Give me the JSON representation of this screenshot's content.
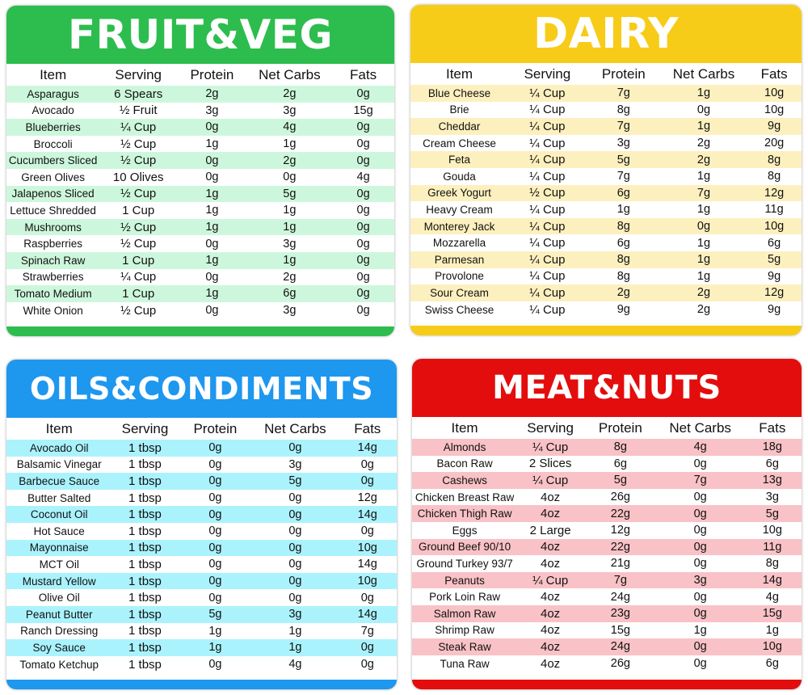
{
  "columns": [
    "Item",
    "Serving",
    "Protein",
    "Net Carbs",
    "Fats"
  ],
  "cards": {
    "fruit": {
      "title": "FRUIT&VEG",
      "accent": "#2dbd4e",
      "stripe": "#cdf7dc",
      "rows": [
        [
          "Asparagus",
          "6 Spears",
          "2g",
          "2g",
          "0g"
        ],
        [
          "Avocado",
          "½ Fruit",
          "3g",
          "3g",
          "15g"
        ],
        [
          "Blueberries",
          "¼ Cup",
          "0g",
          "4g",
          "0g"
        ],
        [
          "Broccoli",
          "½ Cup",
          "1g",
          "1g",
          "0g"
        ],
        [
          "Cucumbers Sliced",
          "½ Cup",
          "0g",
          "2g",
          "0g"
        ],
        [
          "Green Olives",
          "10 Olives",
          "0g",
          "0g",
          "4g"
        ],
        [
          "Jalapenos Sliced",
          "½ Cup",
          "1g",
          "5g",
          "0g"
        ],
        [
          "Lettuce Shredded",
          "1 Cup",
          "1g",
          "1g",
          "0g"
        ],
        [
          "Mushrooms",
          "½ Cup",
          "1g",
          "1g",
          "0g"
        ],
        [
          "Raspberries",
          "½ Cup",
          "0g",
          "3g",
          "0g"
        ],
        [
          "Spinach Raw",
          "1 Cup",
          "1g",
          "1g",
          "0g"
        ],
        [
          "Strawberries",
          "¼ Cup",
          "0g",
          "2g",
          "0g"
        ],
        [
          "Tomato Medium",
          "1 Cup",
          "1g",
          "6g",
          "0g"
        ],
        [
          "White Onion",
          "½ Cup",
          "0g",
          "3g",
          "0g"
        ]
      ]
    },
    "dairy": {
      "title": "DAIRY",
      "accent": "#f7cc18",
      "stripe": "#fdf0bf",
      "rows": [
        [
          "Blue Cheese",
          "¼ Cup",
          "7g",
          "1g",
          "10g"
        ],
        [
          "Brie",
          "¼ Cup",
          "8g",
          "0g",
          "10g"
        ],
        [
          "Cheddar",
          "¼ Cup",
          "7g",
          "1g",
          "9g"
        ],
        [
          "Cream Cheese",
          "¼ Cup",
          "3g",
          "2g",
          "20g"
        ],
        [
          "Feta",
          "¼ Cup",
          "5g",
          "2g",
          "8g"
        ],
        [
          "Gouda",
          "¼ Cup",
          "7g",
          "1g",
          "8g"
        ],
        [
          "Greek Yogurt",
          "½ Cup",
          "6g",
          "7g",
          "12g"
        ],
        [
          "Heavy Cream",
          "¼ Cup",
          "1g",
          "1g",
          "11g"
        ],
        [
          "Monterey Jack",
          "¼ Cup",
          "8g",
          "0g",
          "10g"
        ],
        [
          "Mozzarella",
          "¼ Cup",
          "6g",
          "1g",
          "6g"
        ],
        [
          "Parmesan",
          "¼ Cup",
          "8g",
          "1g",
          "5g"
        ],
        [
          "Provolone",
          "¼ Cup",
          "8g",
          "1g",
          "9g"
        ],
        [
          "Sour Cream",
          "¼ Cup",
          "2g",
          "2g",
          "12g"
        ],
        [
          "Swiss Cheese",
          "¼ Cup",
          "9g",
          "2g",
          "9g"
        ]
      ]
    },
    "oils": {
      "title": "OILS&CONDIMENTS",
      "accent": "#1e97ef",
      "stripe": "#aaf3fd",
      "rows": [
        [
          "Avocado Oil",
          "1 tbsp",
          "0g",
          "0g",
          "14g"
        ],
        [
          "Balsamic Vinegar",
          "1 tbsp",
          "0g",
          "3g",
          "0g"
        ],
        [
          "Barbecue Sauce",
          "1 tbsp",
          "0g",
          "5g",
          "0g"
        ],
        [
          "Butter Salted",
          "1 tbsp",
          "0g",
          "0g",
          "12g"
        ],
        [
          "Coconut Oil",
          "1 tbsp",
          "0g",
          "0g",
          "14g"
        ],
        [
          "Hot Sauce",
          "1 tbsp",
          "0g",
          "0g",
          "0g"
        ],
        [
          "Mayonnaise",
          "1 tbsp",
          "0g",
          "0g",
          "10g"
        ],
        [
          "MCT Oil",
          "1 tbsp",
          "0g",
          "0g",
          "14g"
        ],
        [
          "Mustard Yellow",
          "1 tbsp",
          "0g",
          "0g",
          "10g"
        ],
        [
          "Olive Oil",
          "1 tbsp",
          "0g",
          "0g",
          "0g"
        ],
        [
          "Peanut Butter",
          "1 tbsp",
          "5g",
          "3g",
          "14g"
        ],
        [
          "Ranch Dressing",
          "1 tbsp",
          "1g",
          "1g",
          "7g"
        ],
        [
          "Soy Sauce",
          "1 tbsp",
          "1g",
          "1g",
          "0g"
        ],
        [
          "Tomato Ketchup",
          "1 tbsp",
          "0g",
          "4g",
          "0g"
        ]
      ]
    },
    "meat": {
      "title": "MEAT&NUTS",
      "accent": "#e30d0d",
      "stripe": "#f9c2c6",
      "rows": [
        [
          "Almonds",
          "¼ Cup",
          "8g",
          "4g",
          "18g"
        ],
        [
          "Bacon Raw",
          "2 Slices",
          "6g",
          "0g",
          "6g"
        ],
        [
          "Cashews",
          "¼ Cup",
          "5g",
          "7g",
          "13g"
        ],
        [
          "Chicken Breast Raw",
          "4oz",
          "26g",
          "0g",
          "3g"
        ],
        [
          "Chicken Thigh Raw",
          "4oz",
          "22g",
          "0g",
          "5g"
        ],
        [
          "Eggs",
          "2 Large",
          "12g",
          "0g",
          "10g"
        ],
        [
          "Ground Beef 90/10",
          "4oz",
          "22g",
          "0g",
          "11g"
        ],
        [
          "Ground Turkey 93/7",
          "4oz",
          "21g",
          "0g",
          "8g"
        ],
        [
          "Peanuts",
          "¼ Cup",
          "7g",
          "3g",
          "14g"
        ],
        [
          "Pork Loin Raw",
          "4oz",
          "24g",
          "0g",
          "4g"
        ],
        [
          "Salmon Raw",
          "4oz",
          "23g",
          "0g",
          "15g"
        ],
        [
          "Shrimp Raw",
          "4oz",
          "15g",
          "1g",
          "1g"
        ],
        [
          "Steak Raw",
          "4oz",
          "24g",
          "0g",
          "10g"
        ],
        [
          "Tuna Raw",
          "4oz",
          "26g",
          "0g",
          "6g"
        ]
      ]
    }
  }
}
